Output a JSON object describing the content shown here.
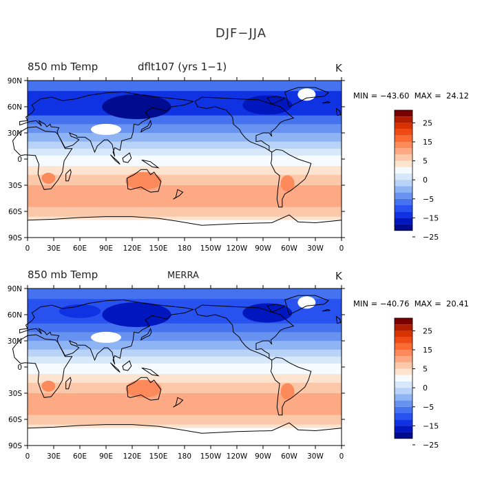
{
  "title": "DJF−JJA",
  "panels": [
    {
      "variable": "850 mb Temp",
      "source": "dflt107 (yrs 1−1)",
      "units": "K",
      "min_label": "MIN =",
      "min": "−43.60",
      "max_label": "MAX =",
      "max": "24.12"
    },
    {
      "variable": "850 mb Temp",
      "source": "MERRA",
      "units": "K",
      "min_label": "MIN =",
      "min": "−40.76",
      "max_label": "MAX =",
      "max": "20.41"
    }
  ],
  "axes": {
    "lat_ticks": [
      "90N",
      "60N",
      "30N",
      "0",
      "30S",
      "60S",
      "90S"
    ],
    "lon_ticks": [
      "0",
      "30E",
      "60E",
      "90E",
      "120E",
      "150E",
      "180",
      "150W",
      "120W",
      "90W",
      "60W",
      "30W",
      "0"
    ]
  },
  "colorbar": {
    "labels": [
      "25",
      "15",
      "5",
      "0",
      "−5",
      "−15",
      "−25"
    ],
    "colors": [
      "#7a0000",
      "#b01c00",
      "#d83200",
      "#ee4b14",
      "#fa6a32",
      "#fc8a5a",
      "#fdaa84",
      "#fcc8aa",
      "#fde4d0",
      "#f6fbff",
      "#d7e8fb",
      "#b8d2f8",
      "#8fb4f3",
      "#6892ef",
      "#4572ee",
      "#2752ef",
      "#0f33e3",
      "#0016bf",
      "#000c8f"
    ]
  },
  "colors": {
    "ocean_tropics": "#fcc8aa",
    "land_mask": "#ffffff",
    "coast": "#000000"
  }
}
